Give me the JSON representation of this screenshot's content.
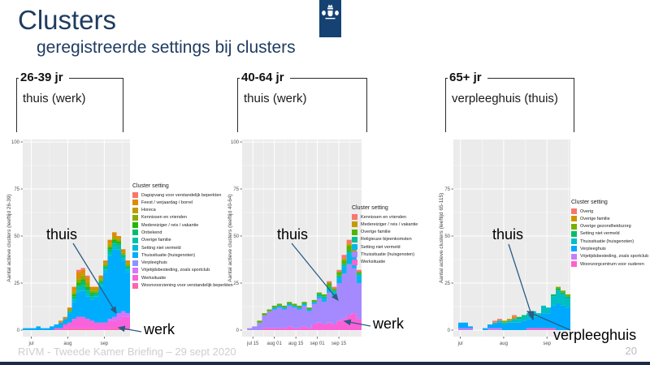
{
  "slide": {
    "title": "Clusters",
    "subtitle": "geregistreerde settings bij clusters",
    "footer": "RIVM - Tweede Kamer Briefing – 29 sept 2020",
    "page_number": "20",
    "accent_color": "#1f3c61",
    "logo_color": "#154273",
    "logo_name": "rijksoverheid-logo",
    "arrow_color": "#2b5c85"
  },
  "chart_data": [
    {
      "type": "area",
      "age_label": "26-39 jr",
      "setting_label": "thuis (werk)",
      "ylabel": "Aantal actieve clusters (leeftijd 26-39)",
      "legend_title": "Cluster setting",
      "ylim": [
        0,
        105
      ],
      "y_ticks": [
        0,
        25,
        50,
        75,
        100
      ],
      "x_tick_labels": [
        "jul",
        "aug",
        "sep"
      ],
      "x_tick_pos": [
        0.08,
        0.42,
        0.76
      ],
      "panel_bg": "#ebebeb",
      "legend_position": "right",
      "stack_order": "bottom-to-top",
      "annotations": [
        {
          "text": "thuis"
        },
        {
          "text": "werk"
        }
      ],
      "series": [
        {
          "name": "Woonvoorziening voor verstandelijk beperkten",
          "color": "#FF65AC",
          "values": [
            0,
            0,
            0,
            0,
            0,
            0,
            0,
            0,
            0,
            1,
            1,
            1,
            1,
            1,
            1,
            1,
            0,
            0,
            0,
            1,
            1,
            1,
            1,
            1
          ]
        },
        {
          "name": "Werksituatie",
          "color": "#F962DD",
          "values": [
            0,
            0,
            0,
            0,
            0,
            0,
            0,
            1,
            1,
            2,
            3,
            5,
            6,
            6,
            5,
            4,
            4,
            4,
            4,
            4,
            4,
            5,
            6,
            6
          ]
        },
        {
          "name": "Vrijetijdsbesteding, zoals sportclub",
          "color": "#D575FE",
          "values": [
            0,
            0,
            0,
            0,
            0,
            0,
            0,
            0,
            0,
            0,
            0,
            0,
            0,
            0,
            0,
            0,
            0,
            0,
            0,
            1,
            2,
            3,
            3,
            2
          ]
        },
        {
          "name": "Verpleeghuis",
          "color": "#8B93FF",
          "values": [
            0,
            0,
            0,
            0,
            0,
            0,
            0,
            0,
            0,
            0,
            0,
            0,
            0,
            0,
            0,
            0,
            0,
            0,
            0,
            0,
            0,
            0,
            0,
            0
          ]
        },
        {
          "name": "Thuissituatie (huisgenoten)",
          "color": "#00ACFC",
          "values": [
            1,
            1,
            1,
            2,
            1,
            1,
            2,
            2,
            3,
            3,
            5,
            9,
            13,
            14,
            12,
            11,
            13,
            19,
            27,
            33,
            36,
            33,
            27,
            22
          ]
        },
        {
          "name": "Setting niet vermeld",
          "color": "#00BBDA",
          "values": [
            0,
            0,
            0,
            0,
            0,
            0,
            0,
            0,
            0,
            0,
            0,
            1,
            1,
            1,
            1,
            1,
            1,
            1,
            1,
            1,
            1,
            1,
            1,
            1
          ]
        },
        {
          "name": "Overige familie",
          "color": "#00C1AB",
          "values": [
            0,
            0,
            0,
            0,
            0,
            0,
            0,
            0,
            0,
            0,
            1,
            1,
            2,
            2,
            2,
            1,
            1,
            1,
            1,
            2,
            2,
            2,
            1,
            1
          ]
        },
        {
          "name": "Onbekend",
          "color": "#00BE70",
          "values": [
            0,
            0,
            0,
            0,
            0,
            0,
            0,
            0,
            0,
            0,
            0,
            1,
            1,
            2,
            1,
            1,
            1,
            1,
            1,
            1,
            1,
            1,
            1,
            1
          ]
        },
        {
          "name": "Medereiziger / reis / vakantie",
          "color": "#24B700",
          "values": [
            0,
            0,
            0,
            0,
            0,
            0,
            0,
            0,
            0,
            0,
            0,
            1,
            1,
            1,
            1,
            1,
            0,
            0,
            0,
            1,
            1,
            1,
            0,
            0
          ]
        },
        {
          "name": "Kennissen en vrienden",
          "color": "#8CAB00",
          "values": [
            0,
            0,
            0,
            0,
            0,
            0,
            0,
            0,
            0,
            0,
            1,
            1,
            2,
            2,
            2,
            1,
            1,
            1,
            1,
            1,
            1,
            1,
            1,
            1
          ]
        },
        {
          "name": "Horeca",
          "color": "#BE9C00",
          "values": [
            0,
            0,
            0,
            0,
            0,
            0,
            0,
            0,
            0,
            0,
            0,
            1,
            1,
            1,
            1,
            1,
            1,
            1,
            1,
            1,
            1,
            1,
            1,
            1
          ]
        },
        {
          "name": "Feest / verjaardag / borrel",
          "color": "#E18A00",
          "values": [
            0,
            0,
            0,
            0,
            0,
            0,
            0,
            0,
            1,
            1,
            1,
            2,
            3,
            2,
            2,
            1,
            1,
            1,
            1,
            2,
            2,
            1,
            1,
            1
          ]
        },
        {
          "name": "Dagopvang voor verstandelijk beperkten",
          "color": "#F8766D",
          "values": [
            0,
            0,
            0,
            0,
            0,
            0,
            0,
            0,
            0,
            0,
            0,
            0,
            1,
            1,
            1,
            0,
            0,
            0,
            0,
            0,
            0,
            0,
            0,
            0
          ]
        }
      ]
    },
    {
      "type": "area",
      "age_label": "40-64 jr",
      "setting_label": "thuis (werk)",
      "ylabel": "Aantal actieve clusters (leeftijd 40-64)",
      "legend_title": "Cluster setting",
      "ylim": [
        0,
        105
      ],
      "y_ticks": [
        0,
        25,
        50,
        75,
        100
      ],
      "x_tick_labels": [
        "jul 15",
        "aug 01",
        "aug 15",
        "sep 01",
        "sep 15"
      ],
      "x_tick_pos": [
        0.09,
        0.27,
        0.45,
        0.63,
        0.81
      ],
      "panel_bg": "#ebebeb",
      "legend_position": "right",
      "stack_order": "bottom-to-top",
      "annotations": [
        {
          "text": "thuis"
        },
        {
          "text": "werk"
        }
      ],
      "series": [
        {
          "name": "Werksituatie",
          "color": "#FB61D7",
          "values": [
            0,
            0,
            0,
            0,
            1,
            1,
            1,
            1,
            1,
            2,
            1,
            1,
            2,
            1,
            3,
            4,
            3,
            4,
            3,
            5,
            6,
            8,
            9,
            6
          ]
        },
        {
          "name": "Thuissituatie (huisgenoten)",
          "color": "#A58AFF",
          "values": [
            0,
            1,
            2,
            4,
            7,
            9,
            10,
            11,
            10,
            11,
            11,
            10,
            11,
            9,
            11,
            13,
            12,
            16,
            15,
            20,
            24,
            27,
            24,
            19
          ]
        },
        {
          "name": "Setting niet vermeld",
          "color": "#00B6EB",
          "values": [
            0,
            0,
            0,
            0,
            0,
            0,
            1,
            1,
            1,
            1,
            1,
            1,
            1,
            1,
            1,
            1,
            2,
            2,
            2,
            3,
            4,
            6,
            6,
            4
          ]
        },
        {
          "name": "Religieuze bijeenkomsten",
          "color": "#00C094",
          "values": [
            0,
            0,
            0,
            0,
            0,
            0,
            0,
            0,
            0,
            0,
            0,
            0,
            0,
            0,
            0,
            1,
            1,
            1,
            1,
            1,
            1,
            1,
            1,
            1
          ]
        },
        {
          "name": "Overige familie",
          "color": "#53B400",
          "values": [
            0,
            0,
            0,
            1,
            1,
            1,
            1,
            1,
            1,
            1,
            1,
            1,
            1,
            1,
            1,
            1,
            1,
            2,
            1,
            2,
            2,
            3,
            2,
            1
          ]
        },
        {
          "name": "Medereiziger / reis / vakantie",
          "color": "#C49A00",
          "values": [
            0,
            0,
            0,
            0,
            0,
            0,
            0,
            0,
            0,
            0,
            0,
            0,
            0,
            0,
            0,
            0,
            0,
            0,
            0,
            0,
            1,
            1,
            1,
            0
          ]
        },
        {
          "name": "Kennissen en vrienden",
          "color": "#F8766D",
          "values": [
            0,
            0,
            0,
            0,
            0,
            0,
            0,
            0,
            0,
            0,
            0,
            0,
            0,
            0,
            0,
            0,
            0,
            1,
            1,
            1,
            2,
            2,
            2,
            1
          ]
        }
      ]
    },
    {
      "type": "area",
      "age_label": "65+ jr",
      "setting_label": "verpleeghuis (thuis)",
      "ylabel": "Aantal actieve clusters (leeftijd 65-115)",
      "legend_title": "Cluster setting",
      "ylim": [
        0,
        105
      ],
      "y_ticks": [
        0,
        25,
        50,
        75
      ],
      "x_tick_labels": [
        "jul",
        "aug",
        "sep"
      ],
      "x_tick_pos": [
        0.06,
        0.43,
        0.8
      ],
      "panel_bg": "#ebebeb",
      "legend_position": "right",
      "stack_order": "bottom-to-top",
      "annotations": [
        {
          "text": "thuis"
        },
        {
          "text": "verpleeghuis"
        }
      ],
      "series": [
        {
          "name": "Woonzorgcentrum voor ouderen",
          "color": "#FF61CC",
          "values": [
            0,
            0,
            0,
            0,
            0,
            0,
            0,
            0,
            0,
            0,
            0,
            0,
            0,
            0,
            0,
            1,
            1,
            1,
            1,
            1,
            1,
            0,
            0,
            0
          ]
        },
        {
          "name": "Vrijetijdsbesteding, zoals sportclub",
          "color": "#C77CFF",
          "values": [
            0,
            1,
            1,
            1,
            0,
            0,
            0,
            1,
            1,
            1,
            0,
            0,
            0,
            0,
            0,
            0,
            0,
            0,
            0,
            0,
            0,
            0,
            0,
            0
          ]
        },
        {
          "name": "Verpleeghuis",
          "color": "#00A9FF",
          "values": [
            0,
            3,
            3,
            1,
            0,
            0,
            1,
            2,
            2,
            3,
            3,
            4,
            4,
            4,
            5,
            5,
            6,
            6,
            8,
            8,
            12,
            14,
            13,
            12
          ]
        },
        {
          "name": "Thuissituatie (huisgenoten)",
          "color": "#00BFC4",
          "values": [
            0,
            0,
            0,
            0,
            0,
            0,
            0,
            0,
            1,
            1,
            1,
            1,
            2,
            2,
            2,
            3,
            3,
            2,
            4,
            3,
            5,
            7,
            6,
            5
          ]
        },
        {
          "name": "Setting niet vermeld",
          "color": "#00BE67",
          "values": [
            0,
            0,
            0,
            0,
            0,
            0,
            0,
            0,
            0,
            0,
            0,
            0,
            0,
            1,
            1,
            0,
            0,
            0,
            0,
            0,
            1,
            1,
            1,
            1
          ]
        },
        {
          "name": "Overige gezondheidszorg",
          "color": "#7CAE00",
          "values": [
            0,
            0,
            0,
            0,
            0,
            0,
            0,
            0,
            0,
            0,
            1,
            0,
            0,
            0,
            0,
            0,
            0,
            0,
            0,
            0,
            0,
            1,
            1,
            1
          ]
        },
        {
          "name": "Overige familie",
          "color": "#CD9600",
          "values": [
            0,
            0,
            0,
            0,
            0,
            0,
            0,
            0,
            0,
            0,
            0,
            1,
            1,
            0,
            0,
            0,
            0,
            0,
            0,
            0,
            0,
            0,
            0,
            0
          ]
        },
        {
          "name": "Overig",
          "color": "#F8766D",
          "values": [
            0,
            0,
            0,
            0,
            0,
            0,
            0,
            0,
            1,
            1,
            0,
            0,
            1,
            0,
            0,
            0,
            0,
            0,
            0,
            0,
            0,
            0,
            0,
            0
          ]
        }
      ]
    }
  ]
}
